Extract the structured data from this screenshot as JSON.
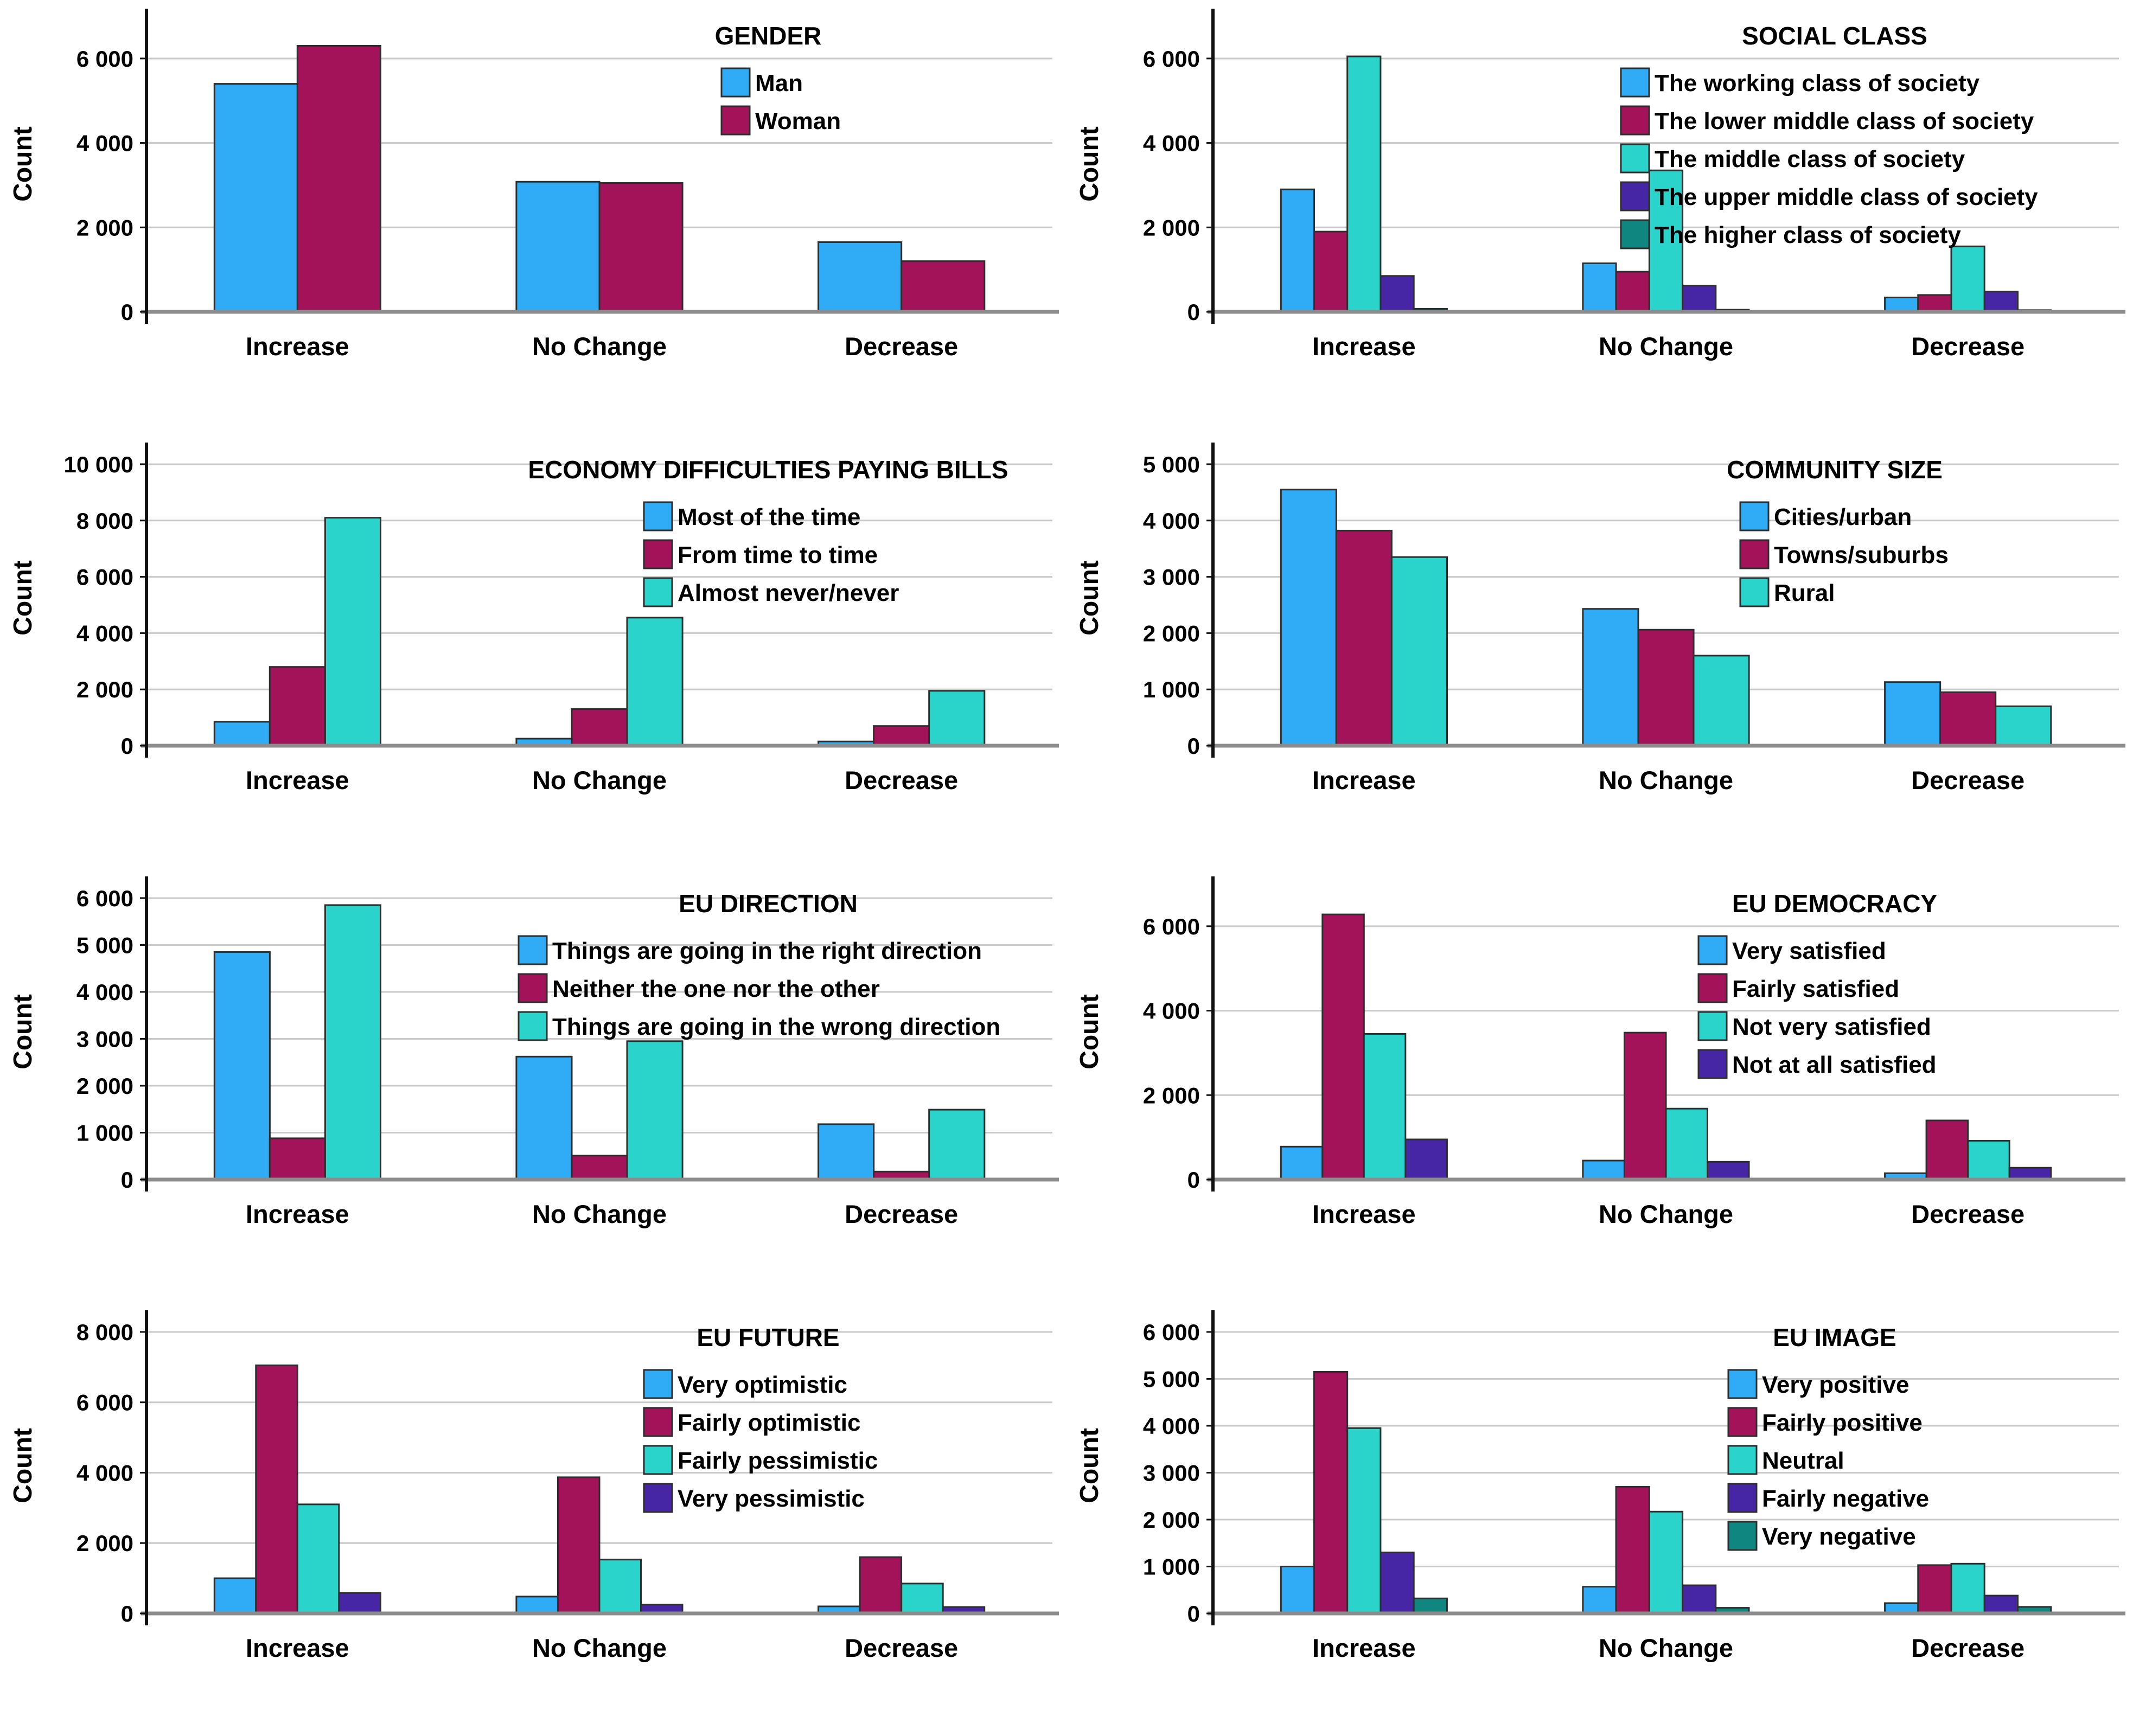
{
  "figure": {
    "ylabel": "Count",
    "categories": [
      "Increase",
      "No Change",
      "Decrease"
    ],
    "background": "#ffffff",
    "grid_color": "#c9c9c9",
    "axis_color": "#111111",
    "baseline_color": "#8c8c8c",
    "bar_outline_color": "#2e2e2e",
    "text_color": "#000000",
    "palette": [
      "#2FACF5",
      "#A3135A",
      "#2BD4CB",
      "#4726A6",
      "#0F8680"
    ]
  },
  "chart_data": [
    {
      "type": "bar",
      "title": "GENDER",
      "ylabel": "Count",
      "xlabel": "",
      "categories": [
        "Increase",
        "No Change",
        "Decrease"
      ],
      "ylim": [
        0,
        7000
      ],
      "yticks": [
        0,
        2000,
        4000,
        6000
      ],
      "grid": true,
      "legend_position": "top-right",
      "series": [
        {
          "name": "Man",
          "color": "#2FACF5",
          "values": [
            5400,
            3080,
            1650
          ]
        },
        {
          "name": "Woman",
          "color": "#A3135A",
          "values": [
            6300,
            3050,
            1200
          ]
        }
      ]
    },
    {
      "type": "bar",
      "title": "SOCIAL CLASS",
      "ylabel": "Count",
      "xlabel": "",
      "categories": [
        "Increase",
        "No Change",
        "Decrease"
      ],
      "ylim": [
        0,
        7000
      ],
      "yticks": [
        0,
        2000,
        4000,
        6000
      ],
      "grid": true,
      "legend_position": "top-right",
      "series": [
        {
          "name": "The working class of society",
          "color": "#2FACF5",
          "values": [
            2900,
            1150,
            340
          ]
        },
        {
          "name": "The lower middle class of society",
          "color": "#A3135A",
          "values": [
            1900,
            950,
            400
          ]
        },
        {
          "name": "The middle class of society",
          "color": "#2BD4CB",
          "values": [
            6050,
            3350,
            1550
          ]
        },
        {
          "name": "The upper middle class of society",
          "color": "#4726A6",
          "values": [
            850,
            620,
            480
          ]
        },
        {
          "name": "The higher class of society",
          "color": "#0F8680",
          "values": [
            70,
            50,
            40
          ]
        }
      ]
    },
    {
      "type": "bar",
      "title": "ECONOMY DIFFICULTIES PAYING BILLS",
      "ylabel": "Count",
      "xlabel": "",
      "categories": [
        "Increase",
        "No Change",
        "Decrease"
      ],
      "ylim": [
        0,
        10500
      ],
      "yticks": [
        0,
        2000,
        4000,
        6000,
        8000,
        10000
      ],
      "grid": true,
      "legend_position": "top-right",
      "series": [
        {
          "name": "Most of the time",
          "color": "#2FACF5",
          "values": [
            850,
            250,
            150
          ]
        },
        {
          "name": "From time to time",
          "color": "#A3135A",
          "values": [
            2800,
            1300,
            700
          ]
        },
        {
          "name": "Almost never/never",
          "color": "#2BD4CB",
          "values": [
            8100,
            4550,
            1950
          ]
        }
      ]
    },
    {
      "type": "bar",
      "title": "COMMUNITY SIZE",
      "ylabel": "Count",
      "xlabel": "",
      "categories": [
        "Increase",
        "No Change",
        "Decrease"
      ],
      "ylim": [
        0,
        5250
      ],
      "yticks": [
        0,
        1000,
        2000,
        3000,
        4000,
        5000
      ],
      "grid": true,
      "legend_position": "top-right",
      "series": [
        {
          "name": "Cities/urban",
          "color": "#2FACF5",
          "values": [
            4550,
            2430,
            1130
          ]
        },
        {
          "name": "Towns/suburbs",
          "color": "#A3135A",
          "values": [
            3820,
            2060,
            950
          ]
        },
        {
          "name": "Rural",
          "color": "#2BD4CB",
          "values": [
            3350,
            1600,
            700
          ]
        }
      ]
    },
    {
      "type": "bar",
      "title": "EU DIRECTION",
      "ylabel": "Count",
      "xlabel": "",
      "categories": [
        "Increase",
        "No Change",
        "Decrease"
      ],
      "ylim": [
        0,
        6300
      ],
      "yticks": [
        0,
        1000,
        2000,
        3000,
        4000,
        5000,
        6000
      ],
      "grid": true,
      "legend_position": "top-right",
      "series": [
        {
          "name": "Things are going in the right direction",
          "color": "#2FACF5",
          "values": [
            4850,
            2620,
            1180
          ]
        },
        {
          "name": "Neither the one nor the other",
          "color": "#A3135A",
          "values": [
            880,
            510,
            170
          ]
        },
        {
          "name": "Things are going in the wrong direction",
          "color": "#2BD4CB",
          "values": [
            5850,
            2950,
            1490
          ]
        }
      ]
    },
    {
      "type": "bar",
      "title": "EU DEMOCRACY",
      "ylabel": "Count",
      "xlabel": "",
      "categories": [
        "Increase",
        "No Change",
        "Decrease"
      ],
      "ylim": [
        0,
        7000
      ],
      "yticks": [
        0,
        2000,
        4000,
        6000
      ],
      "grid": true,
      "legend_position": "top-right",
      "series": [
        {
          "name": "Very satisfied",
          "color": "#2FACF5",
          "values": [
            780,
            450,
            150
          ]
        },
        {
          "name": "Fairly satisfied",
          "color": "#A3135A",
          "values": [
            6280,
            3480,
            1400
          ]
        },
        {
          "name": "Not very satisfied",
          "color": "#2BD4CB",
          "values": [
            3450,
            1680,
            920
          ]
        },
        {
          "name": "Not at all satisfied",
          "color": "#4726A6",
          "values": [
            950,
            420,
            280
          ]
        }
      ]
    },
    {
      "type": "bar",
      "title": "EU FUTURE",
      "ylabel": "Count",
      "xlabel": "",
      "categories": [
        "Increase",
        "No Change",
        "Decrease"
      ],
      "ylim": [
        0,
        8400
      ],
      "yticks": [
        0,
        2000,
        4000,
        6000,
        8000
      ],
      "grid": true,
      "legend_position": "top-right",
      "series": [
        {
          "name": "Very optimistic",
          "color": "#2FACF5",
          "values": [
            1000,
            480,
            200
          ]
        },
        {
          "name": "Fairly optimistic",
          "color": "#A3135A",
          "values": [
            7050,
            3870,
            1600
          ]
        },
        {
          "name": "Fairly pessimistic",
          "color": "#2BD4CB",
          "values": [
            3100,
            1530,
            850
          ]
        },
        {
          "name": "Very pessimistic",
          "color": "#4726A6",
          "values": [
            580,
            250,
            180
          ]
        }
      ]
    },
    {
      "type": "bar",
      "title": "EU IMAGE",
      "ylabel": "Count",
      "xlabel": "",
      "categories": [
        "Increase",
        "No Change",
        "Decrease"
      ],
      "ylim": [
        0,
        6300
      ],
      "yticks": [
        0,
        1000,
        2000,
        3000,
        4000,
        5000,
        6000
      ],
      "grid": true,
      "legend_position": "top-right",
      "series": [
        {
          "name": "Very positive",
          "color": "#2FACF5",
          "values": [
            1000,
            570,
            220
          ]
        },
        {
          "name": "Fairly positive",
          "color": "#A3135A",
          "values": [
            5150,
            2700,
            1030
          ]
        },
        {
          "name": "Neutral",
          "color": "#2BD4CB",
          "values": [
            3950,
            2170,
            1060
          ]
        },
        {
          "name": "Fairly negative",
          "color": "#4726A6",
          "values": [
            1300,
            600,
            380
          ]
        },
        {
          "name": "Very negative",
          "color": "#0F8680",
          "values": [
            320,
            120,
            140
          ]
        }
      ]
    }
  ]
}
